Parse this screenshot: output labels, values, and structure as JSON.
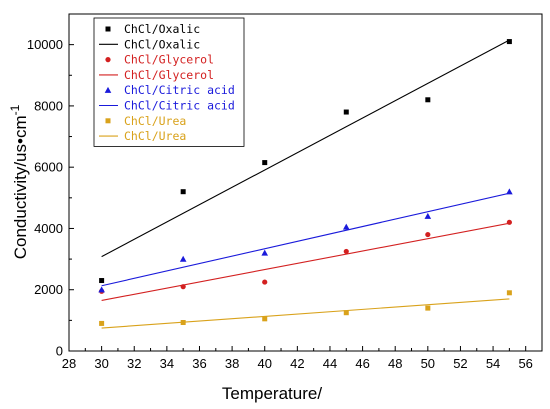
{
  "chart_data": {
    "type": "scatter",
    "xlabel": "Temperature/",
    "ylabel": "Conductivity/us•cm",
    "ylabel_sup": "-1",
    "xlim": [
      28,
      57
    ],
    "ylim": [
      0,
      11000
    ],
    "x_ticks": [
      28,
      30,
      32,
      34,
      36,
      38,
      40,
      42,
      44,
      46,
      48,
      50,
      52,
      54,
      56
    ],
    "y_ticks": [
      0,
      2000,
      4000,
      6000,
      8000,
      10000
    ],
    "grid": false,
    "legend_position": "top-left",
    "series": [
      {
        "name": "ChCl/Oxalic",
        "color": "#000000",
        "marker": "square",
        "x": [
          30,
          35,
          40,
          45,
          50,
          55
        ],
        "y": [
          2300,
          5200,
          6150,
          7800,
          8200,
          10100
        ],
        "fit": {
          "name": "ChCl/Oxalic",
          "x": [
            30,
            55
          ],
          "y": [
            3080,
            10150
          ]
        }
      },
      {
        "name": "ChCl/Glycerol",
        "color": "#d32020",
        "marker": "circle",
        "x": [
          30,
          35,
          40,
          45,
          50,
          55
        ],
        "y": [
          1950,
          2100,
          2250,
          3250,
          3800,
          4200
        ],
        "fit": {
          "name": "ChCl/Glycerol",
          "x": [
            30,
            55
          ],
          "y": [
            1650,
            4170
          ]
        }
      },
      {
        "name": "ChCl/Citric acid",
        "color": "#1a1adb",
        "marker": "triangle",
        "x": [
          30,
          35,
          40,
          45,
          50,
          55
        ],
        "y": [
          2000,
          3000,
          3200,
          4050,
          4400,
          5200
        ],
        "fit": {
          "name": "ChCl/Citric acid",
          "x": [
            30,
            55
          ],
          "y": [
            2130,
            5150
          ]
        }
      },
      {
        "name": "ChCl/Urea",
        "color": "#d9a21b",
        "marker": "square",
        "x": [
          30,
          35,
          40,
          45,
          50,
          55
        ],
        "y": [
          900,
          930,
          1050,
          1250,
          1400,
          1900
        ],
        "fit": {
          "name": "ChCl/Urea",
          "x": [
            30,
            55
          ],
          "y": [
            750,
            1700
          ]
        }
      }
    ]
  }
}
